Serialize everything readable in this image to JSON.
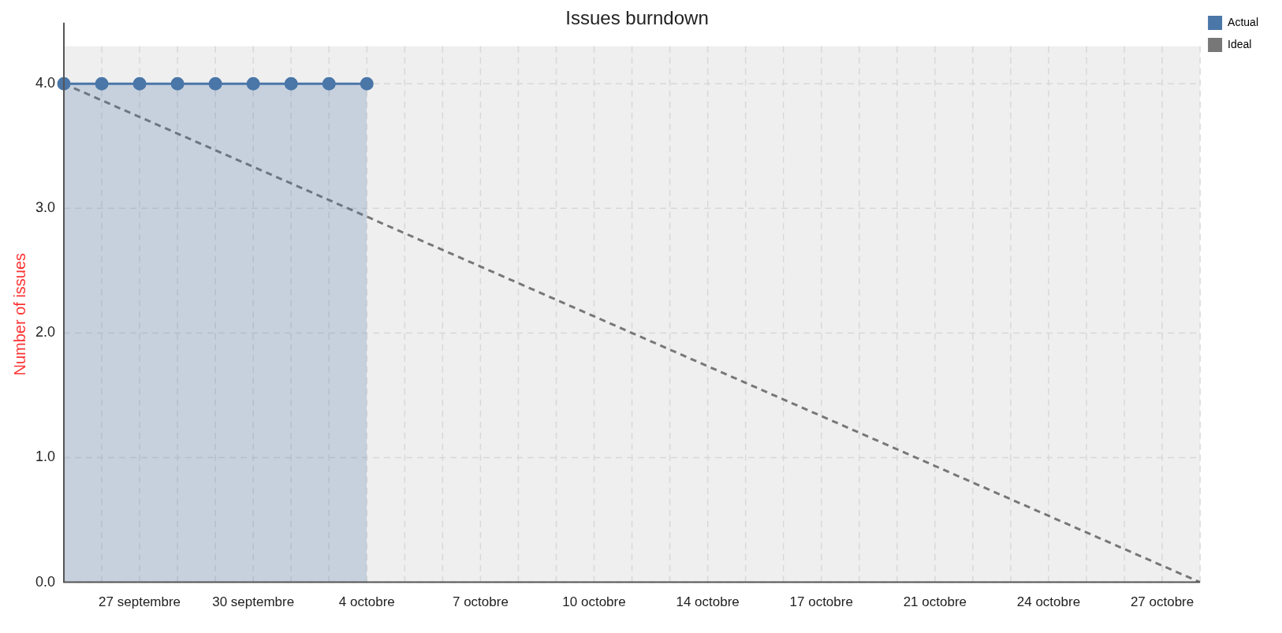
{
  "chart_data": {
    "type": "line",
    "title": "Issues burndown",
    "ylabel": "Number of issues",
    "categories": [
      null,
      null,
      "27 septembre",
      null,
      null,
      "30 septembre",
      null,
      null,
      "4 octobre",
      null,
      null,
      "7 octobre",
      null,
      null,
      "10 octobre",
      null,
      null,
      "14 octobre",
      null,
      null,
      "17 octobre",
      null,
      null,
      "21 octobre",
      null,
      null,
      "24 octobre",
      null,
      null,
      "27 octobre",
      null
    ],
    "ylim": [
      0,
      4.3
    ],
    "yticks": [
      {
        "value": 0,
        "label": "0.0"
      },
      {
        "value": 1,
        "label": "1.0"
      },
      {
        "value": 2,
        "label": "2.0"
      },
      {
        "value": 3,
        "label": "3.0"
      },
      {
        "value": 4,
        "label": "4.0"
      }
    ],
    "grid": true,
    "legend": "top right",
    "series": [
      {
        "name": "Actual",
        "type": "area",
        "color": "#4a76a8",
        "marker": "circle",
        "values": [
          4,
          4,
          4,
          4,
          4,
          4,
          4,
          4,
          4,
          null,
          null,
          null,
          null,
          null,
          null,
          null,
          null,
          null,
          null,
          null,
          null,
          null,
          null,
          null,
          null,
          null,
          null,
          null,
          null,
          null,
          null
        ]
      },
      {
        "name": "Ideal",
        "type": "line",
        "color": "#777777",
        "marker": "none",
        "line_style": "dashed",
        "values": [
          4,
          null,
          null,
          null,
          null,
          null,
          null,
          null,
          null,
          null,
          null,
          null,
          null,
          null,
          null,
          null,
          null,
          null,
          null,
          null,
          null,
          null,
          null,
          null,
          null,
          null,
          null,
          null,
          null,
          null,
          0
        ]
      }
    ]
  }
}
